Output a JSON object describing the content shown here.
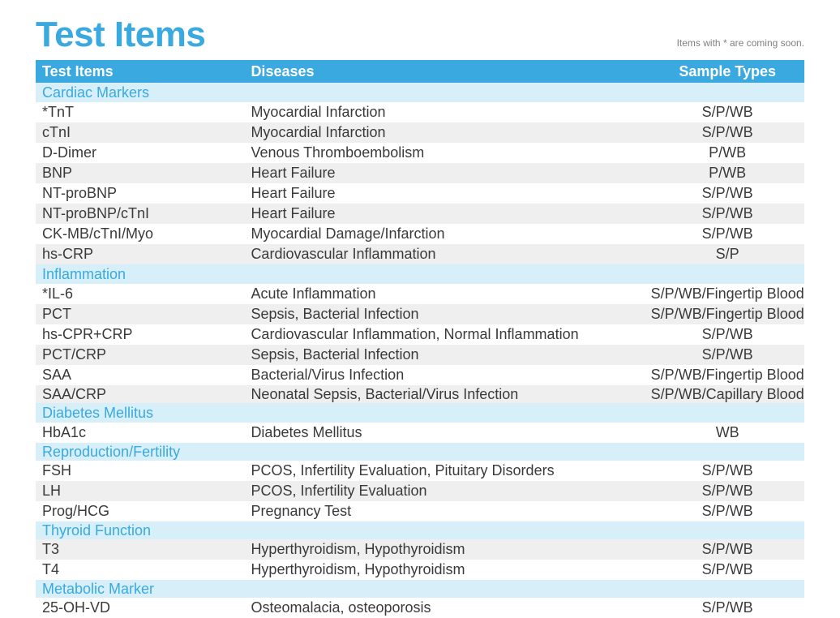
{
  "title": "Test Items",
  "note": "Items with * are coming soon.",
  "columns": {
    "a": "Test Items",
    "b": "Diseases",
    "c": "Sample Types"
  },
  "colors": {
    "accent": "#3aa9df",
    "section_bg": "#d7eff9",
    "stripe": "#efefef",
    "text": "#3a3a3a",
    "background": "#ffffff",
    "note": "#7f7f7f"
  },
  "groups": [
    {
      "name": "Cardiac Markers",
      "rows": [
        {
          "item": "*TnT",
          "disease": "Myocardial Infarction",
          "sample": "S/P/WB",
          "striped": false
        },
        {
          "item": "cTnI",
          "disease": "Myocardial Infarction",
          "sample": "S/P/WB",
          "striped": true
        },
        {
          "item": "D-Dimer",
          "disease": "Venous Thromboembolism",
          "sample": "P/WB",
          "striped": false
        },
        {
          "item": "BNP",
          "disease": "Heart Failure",
          "sample": "P/WB",
          "striped": true
        },
        {
          "item": "NT-proBNP",
          "disease": "Heart Failure",
          "sample": "S/P/WB",
          "striped": false
        },
        {
          "item": "NT-proBNP/cTnI",
          "disease": "Heart Failure",
          "sample": "S/P/WB",
          "striped": true
        },
        {
          "item": "CK-MB/cTnI/Myo",
          "disease": "Myocardial Damage/Infarction",
          "sample": "S/P/WB",
          "striped": false
        },
        {
          "item": "hs-CRP",
          "disease": "Cardiovascular Inflammation",
          "sample": "S/P",
          "striped": true
        }
      ]
    },
    {
      "name": "Inflammation",
      "rows": [
        {
          "item": "*IL-6",
          "disease": "Acute Inflammation",
          "sample": "S/P/WB/Fingertip Blood",
          "striped": false
        },
        {
          "item": "PCT",
          "disease": "Sepsis, Bacterial Infection",
          "sample": "S/P/WB/Fingertip Blood",
          "striped": true
        },
        {
          "item": "hs-CPR+CRP",
          "disease": "Cardiovascular Inflammation, Normal Inflammation",
          "sample": "S/P/WB",
          "striped": false
        },
        {
          "item": "PCT/CRP",
          "disease": "Sepsis, Bacterial Infection",
          "sample": "S/P/WB",
          "striped": true
        },
        {
          "item": "SAA",
          "disease": "Bacterial/Virus Infection",
          "sample": "S/P/WB/Fingertip Blood",
          "striped": false
        },
        {
          "item": "SAA/CRP",
          "disease": "Neonatal Sepsis, Bacterial/Virus Infection",
          "sample": "S/P/WB/Capillary Blood",
          "striped": true,
          "tight": true
        }
      ]
    },
    {
      "name": "Diabetes Mellitus",
      "rows": [
        {
          "item": "HbA1c",
          "disease": "Diabetes Mellitus",
          "sample": "WB",
          "striped": false
        }
      ]
    },
    {
      "name": "Reproduction/Fertility",
      "rows": [
        {
          "item": "FSH",
          "disease": "PCOS, Infertility Evaluation, Pituitary Disorders",
          "sample": "S/P/WB",
          "striped": false
        },
        {
          "item": "LH",
          "disease": "PCOS, Infertility Evaluation",
          "sample": "S/P/WB",
          "striped": true
        },
        {
          "item": "Prog/HCG",
          "disease": "Pregnancy Test",
          "sample": "S/P/WB",
          "striped": false
        }
      ],
      "tight_section": true
    },
    {
      "name": "Thyroid Function",
      "rows": [
        {
          "item": "T3",
          "disease": "Hyperthyroidism, Hypothyroidism",
          "sample": "S/P/WB",
          "striped": true
        },
        {
          "item": "T4",
          "disease": "Hyperthyroidism, Hypothyroidism",
          "sample": "S/P/WB",
          "striped": false
        }
      ],
      "tight_section": true
    },
    {
      "name": "Metabolic Marker",
      "rows": [
        {
          "item": "25-OH-VD",
          "disease": "Osteomalacia, osteoporosis",
          "sample": "S/P/WB",
          "striped": false
        }
      ],
      "tight_section": true
    }
  ]
}
